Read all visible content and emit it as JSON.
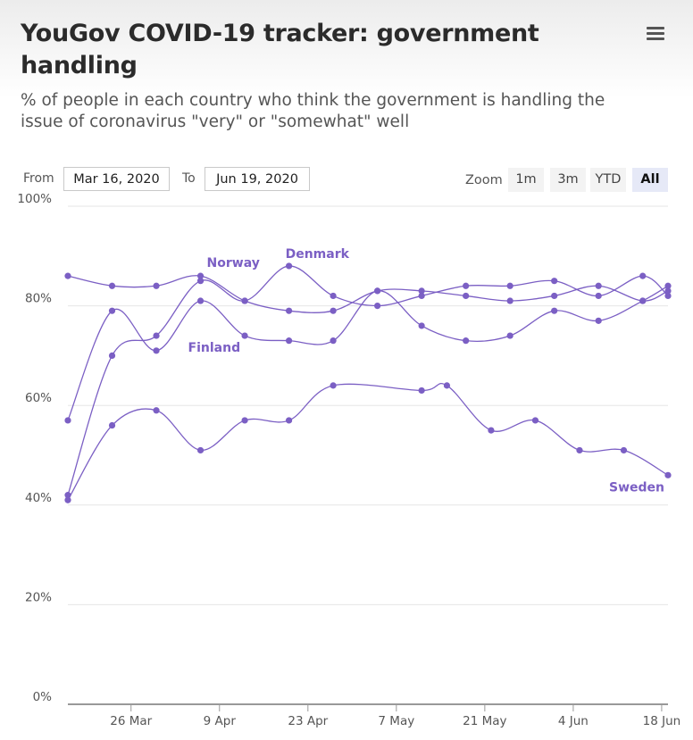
{
  "header": {
    "title": "YouGov COVID-19 tracker: government handling",
    "subtitle": "% of people in each country who think the government is handling the issue of coronavirus \"very\" or \"somewhat\" well",
    "menu_icon": "hamburger-menu-icon"
  },
  "range_selector": {
    "from_label": "From",
    "from_value": "Mar 16, 2020",
    "to_label": "To",
    "to_value": "Jun 19, 2020"
  },
  "zoom": {
    "label": "Zoom",
    "buttons": [
      "1m",
      "3m",
      "YTD",
      "All"
    ],
    "selected": "All"
  },
  "colors": {
    "series": "#7b5fc4",
    "grid": "#e6e6e6",
    "axis": "#999999"
  },
  "chart_data": {
    "type": "line",
    "x_type": "datetime",
    "xlim": [
      "2020-03-16",
      "2020-06-19"
    ],
    "ylim": [
      0,
      100
    ],
    "y_ticks": [
      0,
      20,
      40,
      60,
      80,
      100
    ],
    "y_tick_labels": [
      "0%",
      "20%",
      "40%",
      "60%",
      "80%",
      "100%"
    ],
    "x_ticks": [
      "2020-03-26",
      "2020-04-09",
      "2020-04-23",
      "2020-05-07",
      "2020-05-21",
      "2020-06-04",
      "2020-06-18"
    ],
    "x_tick_labels": [
      "26 Mar",
      "9 Apr",
      "23 Apr",
      "7 May",
      "21 May",
      "4 Jun",
      "18 Jun"
    ],
    "grid": true,
    "legend": "none (series labelled on lines)",
    "series": [
      {
        "name": "Norway",
        "x": [
          "2020-03-16",
          "2020-03-23",
          "2020-03-30",
          "2020-04-06",
          "2020-04-13",
          "2020-04-20",
          "2020-04-27",
          "2020-05-04",
          "2020-05-11",
          "2020-05-18",
          "2020-05-25",
          "2020-06-01",
          "2020-06-08",
          "2020-06-15",
          "2020-06-19"
        ],
        "values": [
          86,
          84,
          84,
          86,
          81,
          79,
          79,
          83,
          83,
          82,
          81,
          82,
          84,
          81,
          83
        ]
      },
      {
        "name": "Denmark",
        "x": [
          "2020-03-16",
          "2020-03-23",
          "2020-03-30",
          "2020-04-06",
          "2020-04-13",
          "2020-04-20",
          "2020-04-27",
          "2020-05-04",
          "2020-05-11",
          "2020-05-18",
          "2020-05-25",
          "2020-06-01",
          "2020-06-08",
          "2020-06-15",
          "2020-06-19"
        ],
        "values": [
          42,
          70,
          74,
          85,
          81,
          88,
          82,
          80,
          82,
          84,
          84,
          85,
          82,
          86,
          82
        ]
      },
      {
        "name": "Finland",
        "x": [
          "2020-03-16",
          "2020-03-23",
          "2020-03-30",
          "2020-04-06",
          "2020-04-13",
          "2020-04-20",
          "2020-04-27",
          "2020-05-04",
          "2020-05-11",
          "2020-05-18",
          "2020-05-25",
          "2020-06-01",
          "2020-06-08",
          "2020-06-15",
          "2020-06-19"
        ],
        "values": [
          57,
          79,
          71,
          81,
          74,
          73,
          73,
          83,
          76,
          73,
          74,
          79,
          77,
          81,
          84
        ]
      },
      {
        "name": "Sweden",
        "x": [
          "2020-03-16",
          "2020-03-23",
          "2020-03-30",
          "2020-04-06",
          "2020-04-13",
          "2020-04-20",
          "2020-04-27",
          "2020-05-11",
          "2020-05-15",
          "2020-05-22",
          "2020-05-29",
          "2020-06-05",
          "2020-06-12",
          "2020-06-19"
        ],
        "values": [
          41,
          56,
          59,
          51,
          57,
          57,
          64,
          63,
          64,
          55,
          57,
          51,
          51,
          46
        ]
      }
    ]
  }
}
